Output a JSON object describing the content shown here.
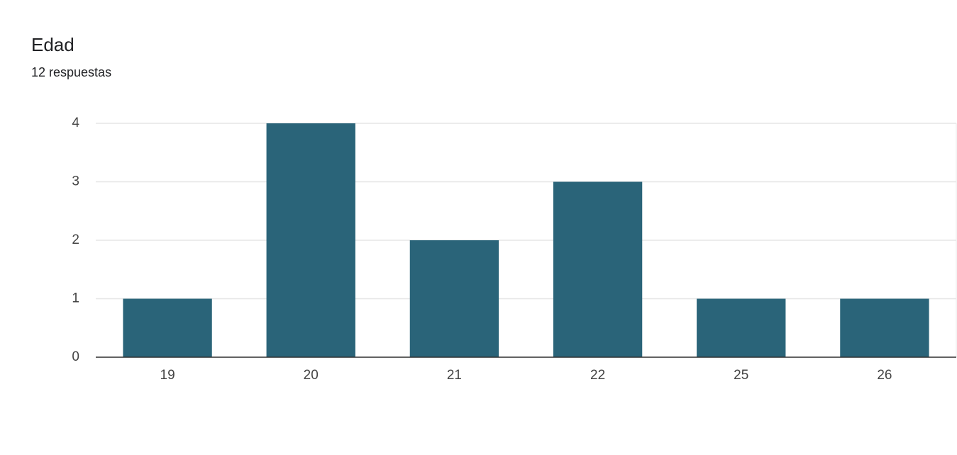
{
  "chart_data": {
    "type": "bar",
    "title": "Edad",
    "subtitle": "12 respuestas",
    "categories": [
      "19",
      "20",
      "21",
      "22",
      "25",
      "26"
    ],
    "values": [
      1,
      4,
      2,
      3,
      1,
      1
    ],
    "color": "#2a6479",
    "ylim": [
      0,
      4
    ],
    "yticks": [
      0,
      1,
      2,
      3,
      4
    ],
    "grid": true
  }
}
